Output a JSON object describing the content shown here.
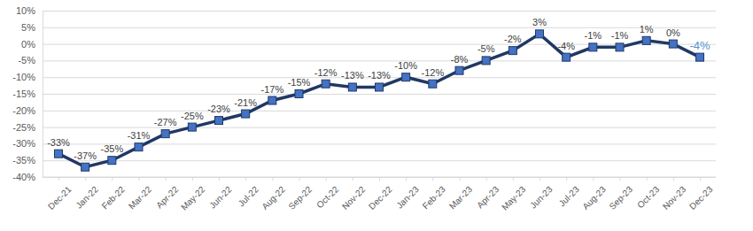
{
  "chart_data": {
    "type": "line",
    "categories": [
      "Dec-21",
      "Jan-22",
      "Feb-22",
      "Mar-22",
      "Apr-22",
      "May-22",
      "Jun-22",
      "Jul-22",
      "Aug-22",
      "Sep-22",
      "Oct-22",
      "Nov-22",
      "Dec-22",
      "Jan-23",
      "Feb-23",
      "Mar-23",
      "Apr-23",
      "May-23",
      "Jun-23",
      "Jul-23",
      "Aug-23",
      "Sep-23",
      "Oct-23",
      "Nov-23",
      "Dec-23"
    ],
    "values": [
      -33,
      -37,
      -35,
      -31,
      -27,
      -25,
      -23,
      -21,
      -17,
      -15,
      -12,
      -13,
      -13,
      -10,
      -12,
      -8,
      -5,
      -2,
      3,
      -4,
      -1,
      -1,
      1,
      0,
      -4
    ],
    "value_labels": [
      "-33%",
      "-37%",
      "-35%",
      "-31%",
      "-27%",
      "-25%",
      "-23%",
      "-21%",
      "-17%",
      "-15%",
      "-12%",
      "-13%",
      "-13%",
      "-10%",
      "-12%",
      "-8%",
      "-5%",
      "-2%",
      "3%",
      "-4%",
      "-1%",
      "-1%",
      "1%",
      "0%",
      "-4%"
    ],
    "color": "#203864",
    "marker": "square",
    "line_style": "solid",
    "data_labels": true,
    "grid": true,
    "ylim": [
      -40,
      10
    ],
    "yticks": [
      {
        "value": -40,
        "label": "-40%"
      },
      {
        "value": -35,
        "label": "-35%"
      },
      {
        "value": -30,
        "label": "-30%"
      },
      {
        "value": -25,
        "label": "-25%"
      },
      {
        "value": -20,
        "label": "-20%"
      },
      {
        "value": -15,
        "label": "-15%"
      },
      {
        "value": -10,
        "label": "-10%"
      },
      {
        "value": -5,
        "label": "-5%"
      },
      {
        "value": 0,
        "label": "0%"
      },
      {
        "value": 5,
        "label": "5%"
      },
      {
        "value": 10,
        "label": "10%"
      }
    ]
  }
}
